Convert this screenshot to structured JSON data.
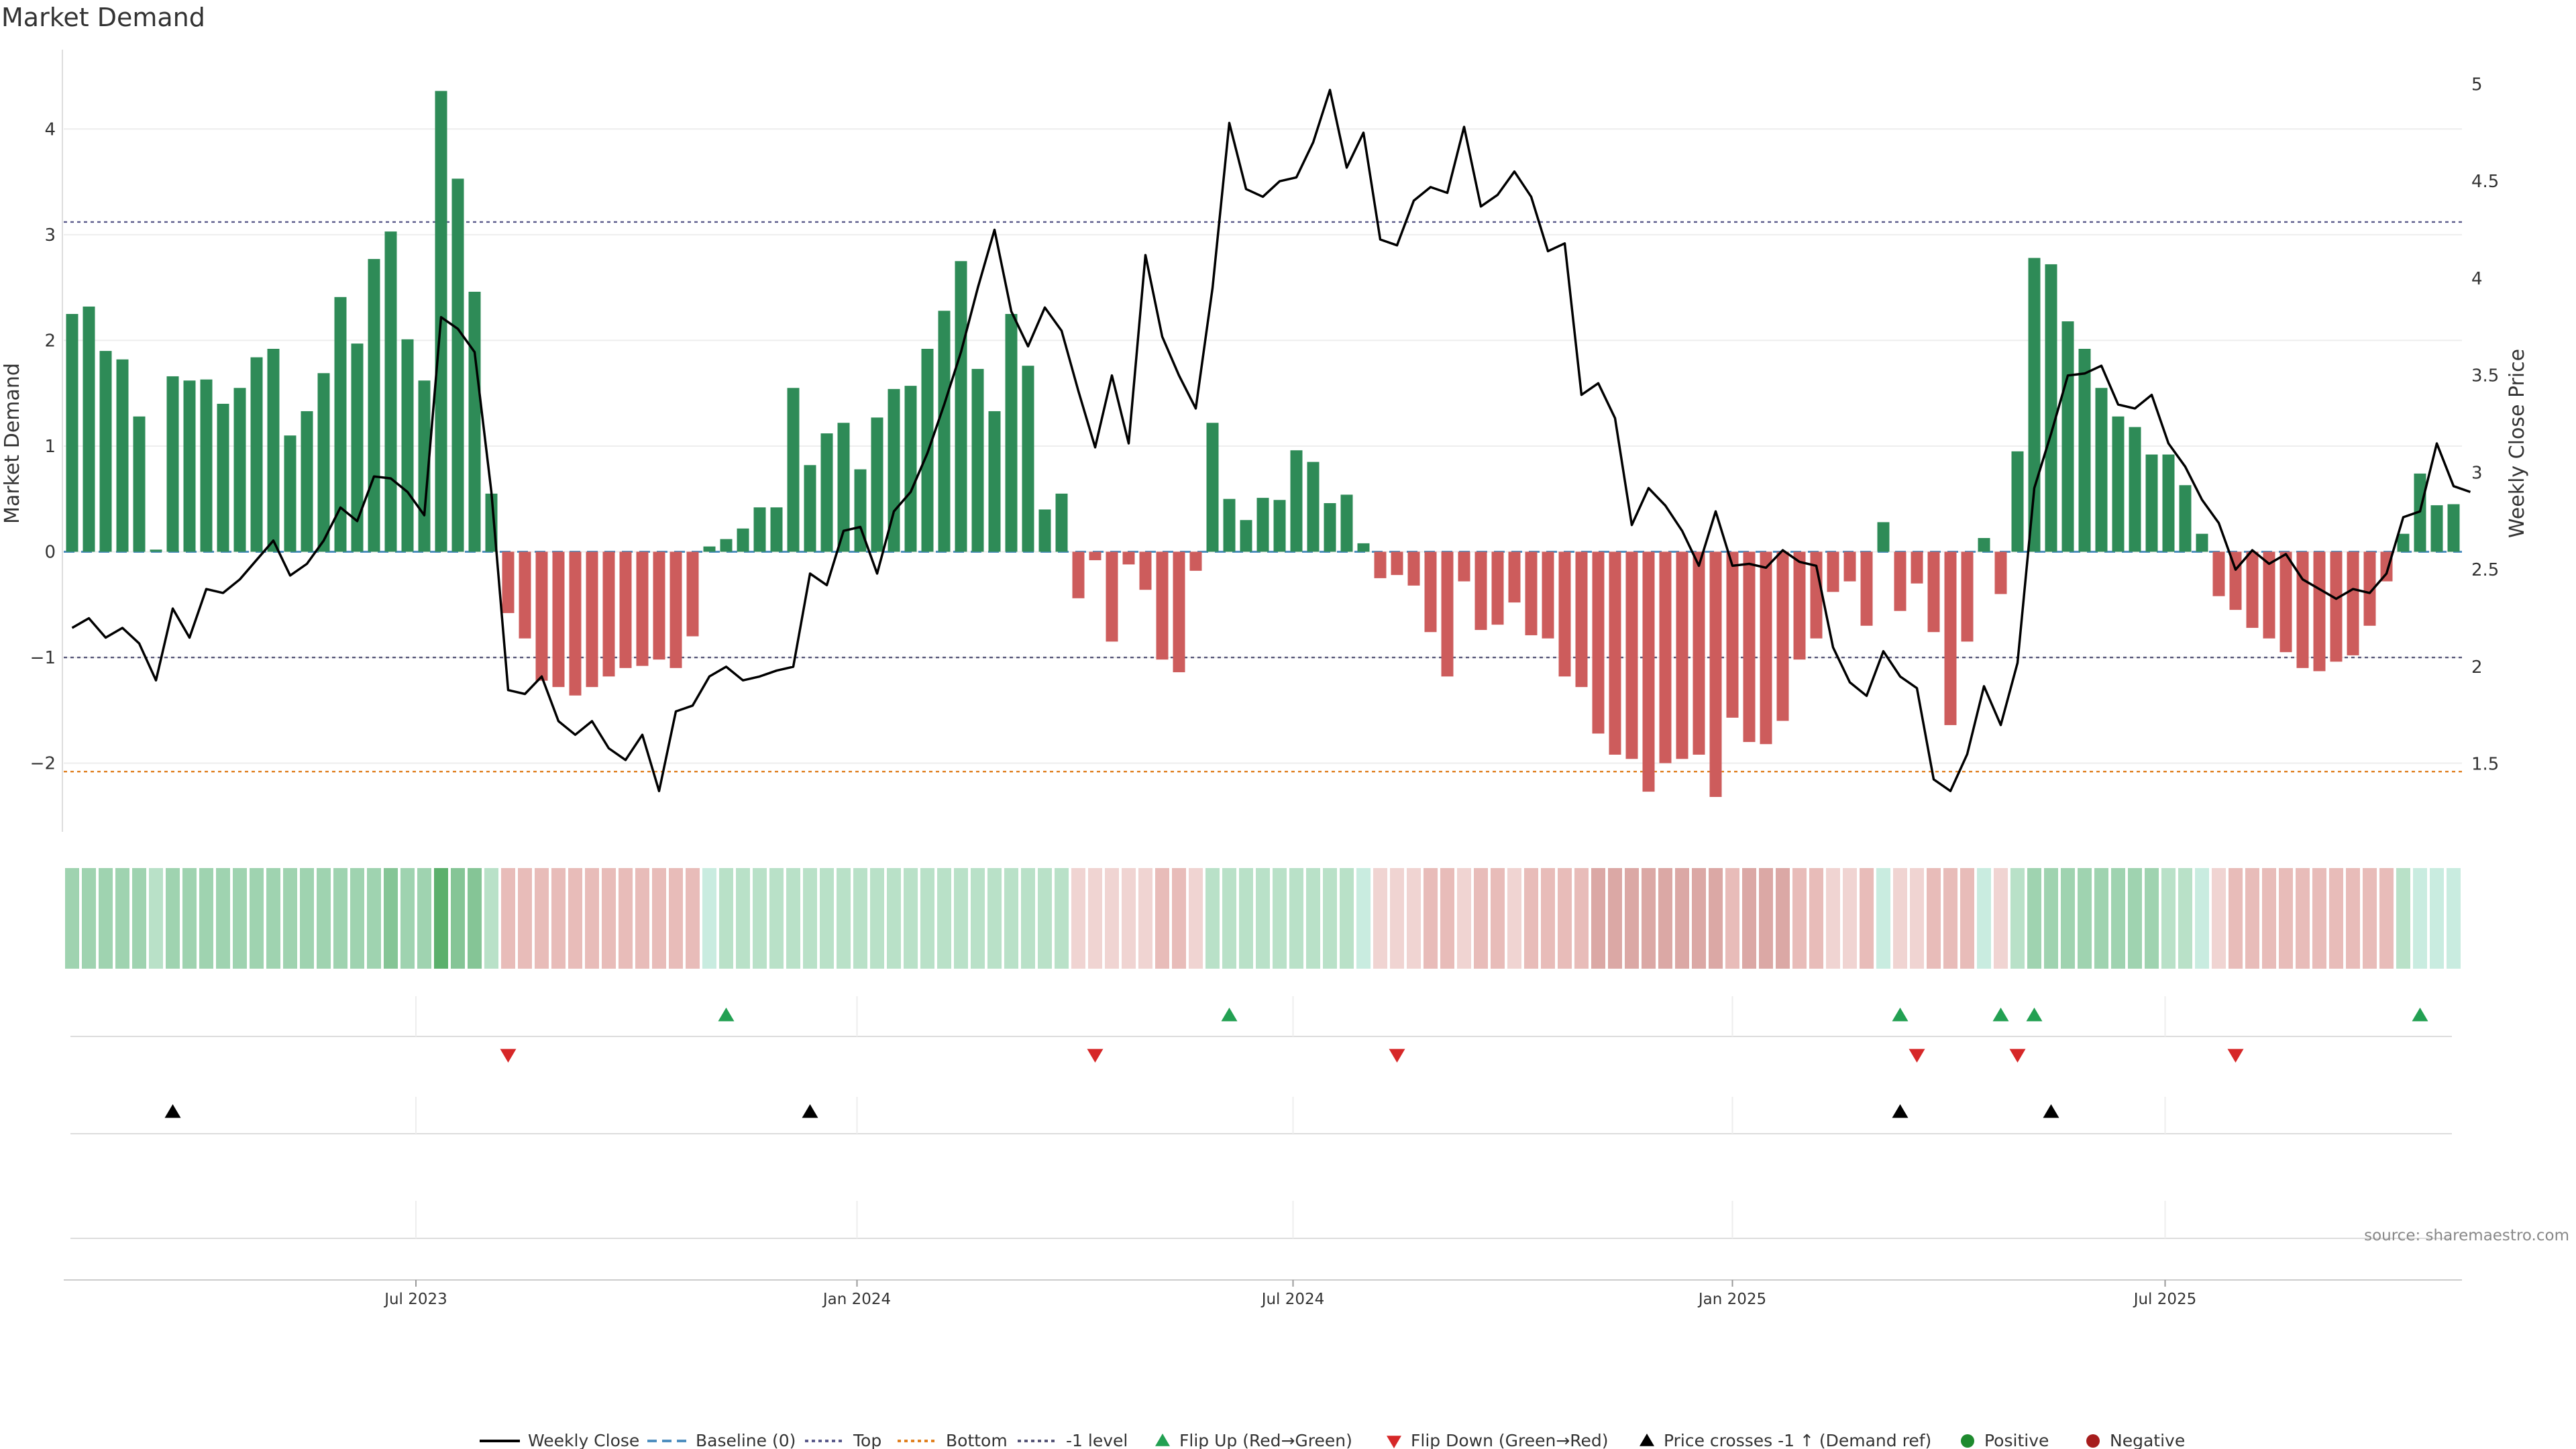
{
  "chart_data": {
    "type": "bar+line",
    "title": "Market Demand",
    "ylabel_left": "Market Demand",
    "ylabel_right": "Weekly Close Price",
    "ylim_left": [
      -2.65,
      4.7
    ],
    "ylim_right": [
      1.15,
      5.15
    ],
    "yticks_left": [
      {
        "v": 4,
        "label": "4"
      },
      {
        "v": 3,
        "label": "3"
      },
      {
        "v": 2,
        "label": "2"
      },
      {
        "v": 1,
        "label": "1"
      },
      {
        "v": 0,
        "label": "0"
      },
      {
        "v": -1,
        "label": "−1"
      },
      {
        "v": -2,
        "label": "−2"
      }
    ],
    "yticks_right": [
      {
        "v": 5,
        "label": "5"
      },
      {
        "v": 4.5,
        "label": "4.5"
      },
      {
        "v": 4,
        "label": "4"
      },
      {
        "v": 3.5,
        "label": "3.5"
      },
      {
        "v": 3,
        "label": "3"
      },
      {
        "v": 2.5,
        "label": "2.5"
      },
      {
        "v": 2,
        "label": "2"
      },
      {
        "v": 1.5,
        "label": "1.5"
      }
    ],
    "xticks": [
      {
        "i": 20.5,
        "label": "Jul 2023"
      },
      {
        "i": 46.8,
        "label": "Jan 2024"
      },
      {
        "i": 72.8,
        "label": "Jul 2024"
      },
      {
        "i": 99,
        "label": "Jan 2025"
      },
      {
        "i": 124.8,
        "label": "Jul 2025"
      }
    ],
    "reference_lines": {
      "top": 3.12,
      "bottom": -2.08,
      "minus_one": -1,
      "baseline": 0
    },
    "demand": [
      2.25,
      2.32,
      1.9,
      1.82,
      1.28,
      0.02,
      1.66,
      1.62,
      1.63,
      1.4,
      1.55,
      1.84,
      1.92,
      1.1,
      1.33,
      1.69,
      2.41,
      1.97,
      2.77,
      3.03,
      2.01,
      1.62,
      4.36,
      3.53,
      2.46,
      0.55,
      -0.58,
      -0.82,
      -1.22,
      -1.28,
      -1.36,
      -1.28,
      -1.18,
      -1.1,
      -1.08,
      -1.02,
      -1.1,
      -0.8,
      0.05,
      0.12,
      0.22,
      0.42,
      0.42,
      1.55,
      0.82,
      1.12,
      1.22,
      0.78,
      1.27,
      1.54,
      1.57,
      1.92,
      2.28,
      2.75,
      1.73,
      1.33,
      2.25,
      1.76,
      0.4,
      0.55,
      -0.44,
      -0.08,
      -0.85,
      -0.12,
      -0.36,
      -1.02,
      -1.14,
      -0.18,
      1.22,
      0.5,
      0.3,
      0.51,
      0.49,
      0.96,
      0.85,
      0.46,
      0.54,
      0.08,
      -0.25,
      -0.22,
      -0.32,
      -0.76,
      -1.18,
      -0.28,
      -0.74,
      -0.69,
      -0.48,
      -0.79,
      -0.82,
      -1.18,
      -1.28,
      -1.72,
      -1.92,
      -1.96,
      -2.27,
      -2.0,
      -1.96,
      -1.92,
      -2.32,
      -1.57,
      -1.8,
      -1.82,
      -1.6,
      -1.02,
      -0.82,
      -0.38,
      -0.28,
      -0.7,
      0.28,
      -0.56,
      -0.3,
      -0.76,
      -1.64,
      -0.85,
      0.13,
      -0.4,
      0.95,
      2.78,
      2.72,
      2.18,
      1.92,
      1.55,
      1.28,
      1.18,
      0.92,
      0.92,
      0.63,
      0.17,
      -0.42,
      -0.55,
      -0.72,
      -0.82,
      -0.95,
      -1.1,
      -1.13,
      -1.04,
      -0.98,
      -0.7,
      -0.28,
      0.17,
      0.74,
      0.44,
      0.45
    ],
    "shade_level": [
      2,
      2,
      2,
      2,
      2,
      1,
      2,
      2,
      2,
      2,
      2,
      2,
      2,
      2,
      2,
      2,
      2,
      2,
      2,
      3,
      2,
      2,
      4,
      3,
      3,
      1,
      1,
      1,
      1,
      1,
      1,
      1,
      1,
      1,
      1,
      1,
      1,
      1,
      0,
      1,
      1,
      1,
      1,
      1,
      1,
      1,
      1,
      1,
      1,
      1,
      1,
      1,
      1,
      1,
      1,
      1,
      1,
      1,
      1,
      1,
      0,
      0,
      0,
      0,
      0,
      1,
      1,
      0,
      1,
      1,
      1,
      1,
      1,
      1,
      1,
      1,
      1,
      0,
      0,
      0,
      0,
      1,
      1,
      0,
      1,
      1,
      0,
      1,
      1,
      1,
      1,
      2,
      2,
      2,
      2,
      2,
      2,
      2,
      2,
      1,
      2,
      2,
      2,
      1,
      1,
      0,
      0,
      1,
      0,
      0,
      0,
      1,
      1,
      1,
      0,
      0,
      1,
      2,
      2,
      2,
      2,
      2,
      2,
      2,
      2,
      1,
      1,
      0,
      0,
      1,
      1,
      1,
      1,
      1,
      1,
      1,
      1,
      1,
      1,
      1,
      0,
      0,
      0,
      0
    ],
    "price": [
      2.2,
      2.25,
      2.15,
      2.2,
      2.12,
      1.93,
      2.3,
      2.15,
      2.4,
      2.38,
      2.45,
      2.55,
      2.65,
      2.47,
      2.53,
      2.65,
      2.82,
      2.75,
      2.98,
      2.97,
      2.9,
      2.78,
      3.8,
      3.74,
      3.62,
      2.9,
      1.88,
      1.86,
      1.95,
      1.72,
      1.65,
      1.72,
      1.58,
      1.52,
      1.65,
      1.36,
      1.77,
      1.8,
      1.95,
      2.0,
      1.93,
      1.95,
      1.98,
      2.0,
      2.48,
      2.42,
      2.7,
      2.72,
      2.48,
      2.8,
      2.9,
      3.1,
      3.35,
      3.62,
      3.95,
      4.25,
      3.83,
      3.65,
      3.85,
      3.73,
      3.42,
      3.13,
      3.5,
      3.15,
      4.12,
      3.7,
      3.5,
      3.33,
      3.95,
      4.8,
      4.46,
      4.42,
      4.5,
      4.52,
      4.7,
      4.97,
      4.57,
      4.75,
      4.2,
      4.17,
      4.4,
      4.47,
      4.44,
      4.78,
      4.37,
      4.43,
      4.55,
      4.42,
      4.14,
      4.18,
      3.4,
      3.46,
      3.28,
      2.73,
      2.92,
      2.83,
      2.7,
      2.52,
      2.8,
      2.52,
      2.53,
      2.51,
      2.6,
      2.54,
      2.52,
      2.1,
      1.92,
      1.85,
      2.08,
      1.95,
      1.89,
      1.42,
      1.36,
      1.55,
      1.9,
      1.7,
      2.02,
      2.92,
      3.2,
      3.5,
      3.51,
      3.55,
      3.35,
      3.33,
      3.4,
      3.15,
      3.03,
      2.86,
      2.74,
      2.5,
      2.6,
      2.53,
      2.58,
      2.45,
      2.4,
      2.35,
      2.4,
      2.38,
      2.48,
      2.77,
      2.8,
      3.15,
      2.93,
      2.9
    ]
  },
  "heat_strip_colors": [
    "#f0d4d2",
    "#e8bcb9",
    "#dba8a5",
    "#c9ece0",
    "#b9e1c8",
    "#9fd3b0",
    "#85c596",
    "#5bb06c"
  ],
  "signals": {
    "flip_up_idx": [
      39,
      69,
      109,
      115,
      117,
      140
    ],
    "flip_down_idx": [
      26,
      61,
      79,
      110,
      116,
      129
    ],
    "price_cross_idx": [
      6,
      44,
      109,
      118
    ]
  },
  "source": "source: sharemaestro.com",
  "legend": {
    "weekly_close": "Weekly Close",
    "baseline": "Baseline (0)",
    "top": "Top",
    "bottom": "Bottom",
    "minus_one": "-1 level",
    "flip_up": "Flip Up (Red→Green)",
    "flip_down": "Flip Down (Green→Red)",
    "price_cross": "Price crosses -1 ↑ (Demand ref)",
    "positive": "Positive",
    "negative": "Negative"
  },
  "colors": {
    "positive_bar": "#2e8b57",
    "negative_bar": "#cd5c5c",
    "price_line": "#000000",
    "baseline": "#4f8fbf",
    "top_line": "#5a5a8a",
    "bottom_line": "#e08020",
    "minus_one_line": "#555577",
    "flip_up": "#22a052",
    "flip_down": "#d62728",
    "price_cross": "#000000",
    "positive_dot": "#1e8a2e",
    "negative_dot": "#a61c1c"
  }
}
